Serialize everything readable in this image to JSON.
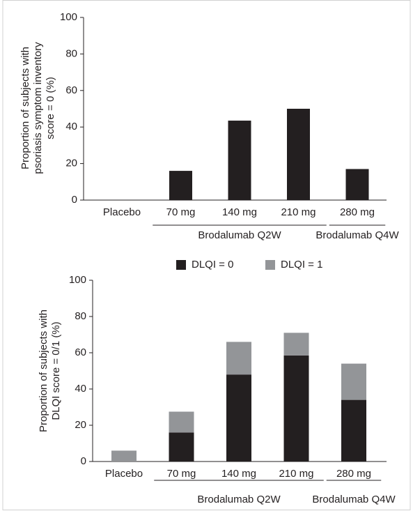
{
  "chart_data": [
    {
      "type": "bar",
      "ylabel": [
        "Proportion of subjects with",
        "psoriasis symptom inventory",
        "score = 0 (%)"
      ],
      "categories": [
        "Placebo",
        "70 mg",
        "140 mg",
        "210 mg",
        "280 mg"
      ],
      "values": [
        0,
        16,
        43.5,
        50,
        17
      ],
      "color": "#231f20",
      "ylim": [
        0,
        100
      ],
      "yticks": [
        0,
        20,
        40,
        60,
        80,
        100
      ],
      "groups": [
        {
          "label": "Brodalumab Q2W",
          "from": 1,
          "to": 3
        },
        {
          "label": "Brodalumab Q4W",
          "from": 4,
          "to": 4
        }
      ]
    },
    {
      "type": "stacked_bar",
      "ylabel": [
        "Proportion of subjects with",
        "DLQI score = 0/1 (%)"
      ],
      "categories": [
        "Placebo",
        "70 mg",
        "140 mg",
        "210 mg",
        "280 mg"
      ],
      "series": [
        {
          "name": "DLQI = 0",
          "color": "#231f20",
          "values": [
            0,
            16,
            48,
            58.5,
            34
          ]
        },
        {
          "name": "DLQI = 1",
          "color": "#939598",
          "values": [
            6,
            11.5,
            18,
            12.5,
            20
          ]
        }
      ],
      "ylim": [
        0,
        100
      ],
      "yticks": [
        0,
        20,
        40,
        60,
        80,
        100
      ],
      "legend": "top",
      "groups": [
        {
          "label": "Brodalumab Q2W",
          "from": 1,
          "to": 3
        },
        {
          "label": "Brodalumab Q4W",
          "from": 4,
          "to": 4
        }
      ]
    }
  ]
}
